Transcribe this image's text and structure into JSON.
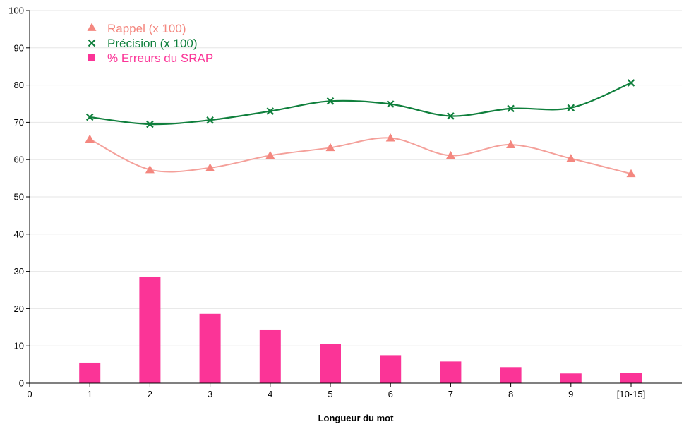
{
  "chart_data": {
    "type": "bar+line",
    "xlabel": "Longueur du mot",
    "ylabel": "",
    "ylim": [
      0,
      100
    ],
    "yticks": [
      0,
      10,
      20,
      30,
      40,
      50,
      60,
      70,
      80,
      90,
      100
    ],
    "x_origin_label": "0",
    "categories": [
      "1",
      "2",
      "3",
      "4",
      "5",
      "6",
      "7",
      "8",
      "9",
      "[10-15]"
    ],
    "grid": "horizontal",
    "legend_position": "top-left",
    "series": [
      {
        "name": "Rappel (x 100)",
        "kind": "line",
        "marker": "triangle",
        "color": "#f4a09a",
        "marker_color": "#f4877f",
        "values": [
          65.5,
          57.3,
          57.8,
          61.1,
          63.2,
          65.8,
          61.1,
          64.0,
          60.3,
          56.2
        ]
      },
      {
        "name": "Précision (x 100)",
        "kind": "line",
        "marker": "x",
        "color": "#0f7f3c",
        "values": [
          71.4,
          69.5,
          70.6,
          73.0,
          75.7,
          74.9,
          71.7,
          73.7,
          73.9,
          80.6
        ]
      },
      {
        "name": "% Erreurs du SRAP",
        "kind": "bar",
        "marker": "square",
        "color": "#fb3497",
        "values": [
          5.5,
          28.6,
          18.6,
          14.4,
          10.6,
          7.5,
          5.8,
          4.3,
          2.6,
          2.8
        ]
      }
    ]
  }
}
